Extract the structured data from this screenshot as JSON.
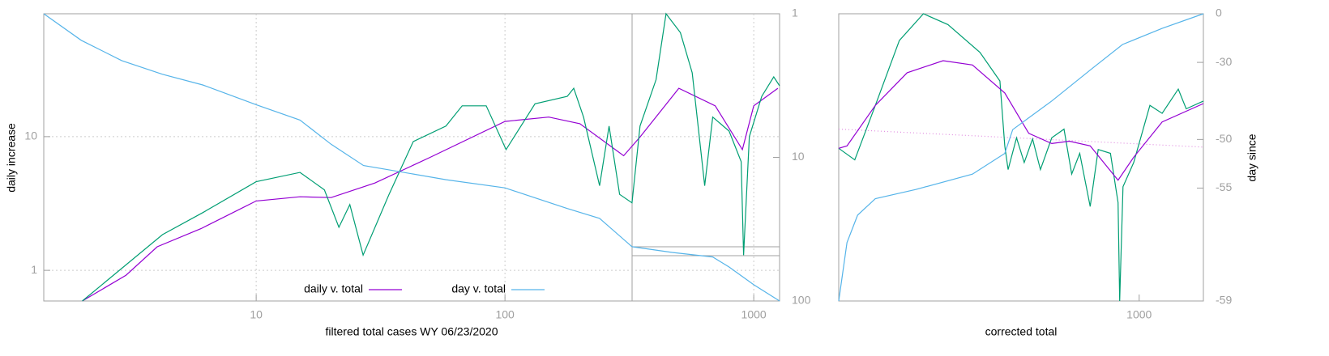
{
  "chart_data": [
    {
      "type": "line",
      "xlabel": "filtered total cases WY 06/23/2020",
      "ylabel": "daily increase",
      "xlog": true,
      "ylog": true,
      "y2log": true,
      "xlim": [
        1.4,
        1270
      ],
      "ylim": [
        0.59,
        83
      ],
      "y2lim": [
        100,
        1
      ],
      "xticks": [
        10,
        100,
        1000
      ],
      "yticks": [
        1,
        10
      ],
      "y2ticks": [
        1,
        10,
        100
      ],
      "grid": true,
      "legend": "bottom",
      "series": [
        {
          "name": "daily v. total",
          "color": "#9400d3",
          "x": [
            2,
            3,
            4,
            6,
            10,
            15,
            20,
            30,
            50,
            100,
            150,
            200,
            300,
            350,
            500,
            700,
            900,
            1000,
            1250
          ],
          "values": [
            0.59,
            0.92,
            1.5,
            2.05,
            3.3,
            3.55,
            3.5,
            4.5,
            7,
            13,
            14,
            12.5,
            7.2,
            10,
            23,
            17,
            8,
            17,
            23
          ]
        },
        {
          "color": "#009e73",
          "x": [
            2,
            4.2,
            6.1,
            10,
            15,
            18.8,
            21.5,
            23.8,
            26.9,
            34.2,
            42.8,
            57.9,
            67.3,
            84.1,
            101,
            132,
            178,
            189,
            207,
            240,
            262,
            289,
            324,
            349,
            405,
            444,
            507,
            566,
            635,
            684,
            796,
            890,
            910,
            960,
            1077,
            1203,
            1270
          ],
          "values": [
            0.59,
            1.85,
            2.7,
            4.6,
            5.4,
            4,
            2.1,
            3.1,
            1.3,
            3.7,
            9.2,
            12,
            17,
            17,
            8,
            17.6,
            20,
            23,
            14,
            4.3,
            12,
            3.7,
            3.2,
            12,
            26.7,
            83,
            60,
            30,
            4.3,
            14,
            11,
            6.5,
            1.3,
            10,
            20,
            28,
            24
          ]
        },
        {
          "name": "day v. total",
          "color": "#56b4e9",
          "axis": "y2",
          "x": [
            1.4,
            1.98,
            2.88,
            4.2,
            6.1,
            10,
            15,
            20,
            27,
            34,
            58,
            100,
            178,
            240,
            324,
            470,
            684,
            796,
            1000,
            1270
          ],
          "values": [
            1,
            1.53,
            2.12,
            2.64,
            3.13,
            4.3,
            5.5,
            8.1,
            11.4,
            12.2,
            14.3,
            16.3,
            22.7,
            26.6,
            41.9,
            45.9,
            49.4,
            58,
            77,
            100
          ]
        }
      ]
    },
    {
      "type": "line",
      "xlabel": "corrected total",
      "y2label": "day since",
      "xlog": true,
      "ylog": true,
      "y2log": true,
      "y2offset": 60,
      "xlim": [
        150,
        1500
      ],
      "ylim": [
        3,
        30
      ],
      "y2lim": [
        -59,
        0
      ],
      "xticks": [
        1000
      ],
      "y2ticks": [
        0,
        -30,
        -50,
        -55,
        -59
      ],
      "grid": false,
      "series": [
        {
          "color": "#e08ce0",
          "dash": true,
          "x": [
            150,
            1500
          ],
          "values": [
            11.9,
            10.3
          ]
        },
        {
          "color": "#009e73",
          "x": [
            150,
            166,
            189,
            220,
            256,
            299,
            366,
            415,
            428,
            437,
            461,
            484,
            510,
            536,
            576,
            622,
            653,
            687,
            734,
            772,
            834,
            875,
            884,
            903,
            966,
            1070,
            1156,
            1280,
            1346,
            1500
          ],
          "values": [
            10.2,
            9.3,
            14.4,
            24.2,
            30,
            27.5,
            22,
            17.5,
            10.4,
            8.6,
            11.1,
            9.1,
            11,
            8.6,
            11.1,
            11.9,
            8.3,
            9.8,
            6.4,
            10.1,
            9.8,
            6.6,
            3,
            7.5,
            9.1,
            14.4,
            13.5,
            16.4,
            14,
            14.9
          ]
        },
        {
          "color": "#9400d3",
          "x": [
            150,
            158,
            189,
            231,
            290,
            349,
            428,
            498,
            576,
            643,
            734,
            875,
            966,
            1156,
            1500
          ],
          "values": [
            10.2,
            10.4,
            14.4,
            18.7,
            20.6,
            19.9,
            15.9,
            11.5,
            10.6,
            10.8,
            10.4,
            7.9,
            9.5,
            12.6,
            14.6
          ]
        },
        {
          "color": "#56b4e9",
          "axis": "y2",
          "x": [
            150,
            158,
            169,
            189,
            244,
            349,
            428,
            450,
            576,
            740,
            900,
            1156,
            1500
          ],
          "values": [
            -59,
            -57.7,
            -56.6,
            -55.7,
            -55.1,
            -53.9,
            -51.8,
            -48.5,
            -42.7,
            -32.7,
            -21.3,
            -11.3,
            0
          ]
        }
      ]
    }
  ]
}
